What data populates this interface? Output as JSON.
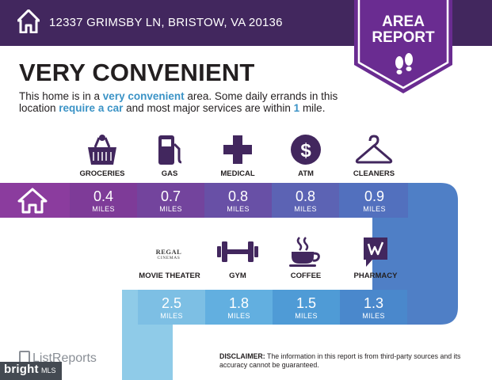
{
  "header": {
    "address": "12337 GRIMSBY LN, BRISTOW, VA 20136"
  },
  "badge": {
    "line1": "AREA",
    "line2": "REPORT"
  },
  "headline": "VERY CONVENIENT",
  "description": {
    "p1": "This home is in a ",
    "em1": "very convenient",
    "p2": " area. Some daily errands in this location ",
    "em2": "require a car",
    "p3": " and most major services are within ",
    "em3": "1",
    "p4": " mile."
  },
  "row1": [
    {
      "label": "GROCERIES",
      "icon": "grocery-basket-icon",
      "distance": "0.4",
      "unit": "MILES"
    },
    {
      "label": "GAS",
      "icon": "gas-pump-icon",
      "distance": "0.7",
      "unit": "MILES"
    },
    {
      "label": "MEDICAL",
      "icon": "medical-cross-icon",
      "distance": "0.8",
      "unit": "MILES"
    },
    {
      "label": "ATM",
      "icon": "dollar-icon",
      "distance": "0.8",
      "unit": "MILES"
    },
    {
      "label": "CLEANERS",
      "icon": "hanger-icon",
      "distance": "0.9",
      "unit": "MILES"
    }
  ],
  "row2": [
    {
      "label": "MOVIE THEATER",
      "icon": "regal-logo",
      "logo1": "REGAL",
      "logo2": "CINEMAS",
      "distance": "2.5",
      "unit": "MILES"
    },
    {
      "label": "GYM",
      "icon": "dumbbell-icon",
      "distance": "1.8",
      "unit": "MILES"
    },
    {
      "label": "COFFEE",
      "icon": "coffee-cup-icon",
      "distance": "1.5",
      "unit": "MILES"
    },
    {
      "label": "PHARMACY",
      "icon": "walgreens-logo",
      "distance": "1.3",
      "unit": "MILES"
    }
  ],
  "footer": {
    "listreports": "ListReports",
    "bright1": "bright",
    "bright2": "MLS",
    "disclaimer_label": "DISCLAIMER:",
    "disclaimer_text": " The information in this report is from third-party sources and its accuracy cannot be guaranteed."
  },
  "colors": {
    "header": "#42275e",
    "badge": "#6a2c91",
    "purple_cell": "#7e3b98",
    "blue": "#3b93c6"
  }
}
